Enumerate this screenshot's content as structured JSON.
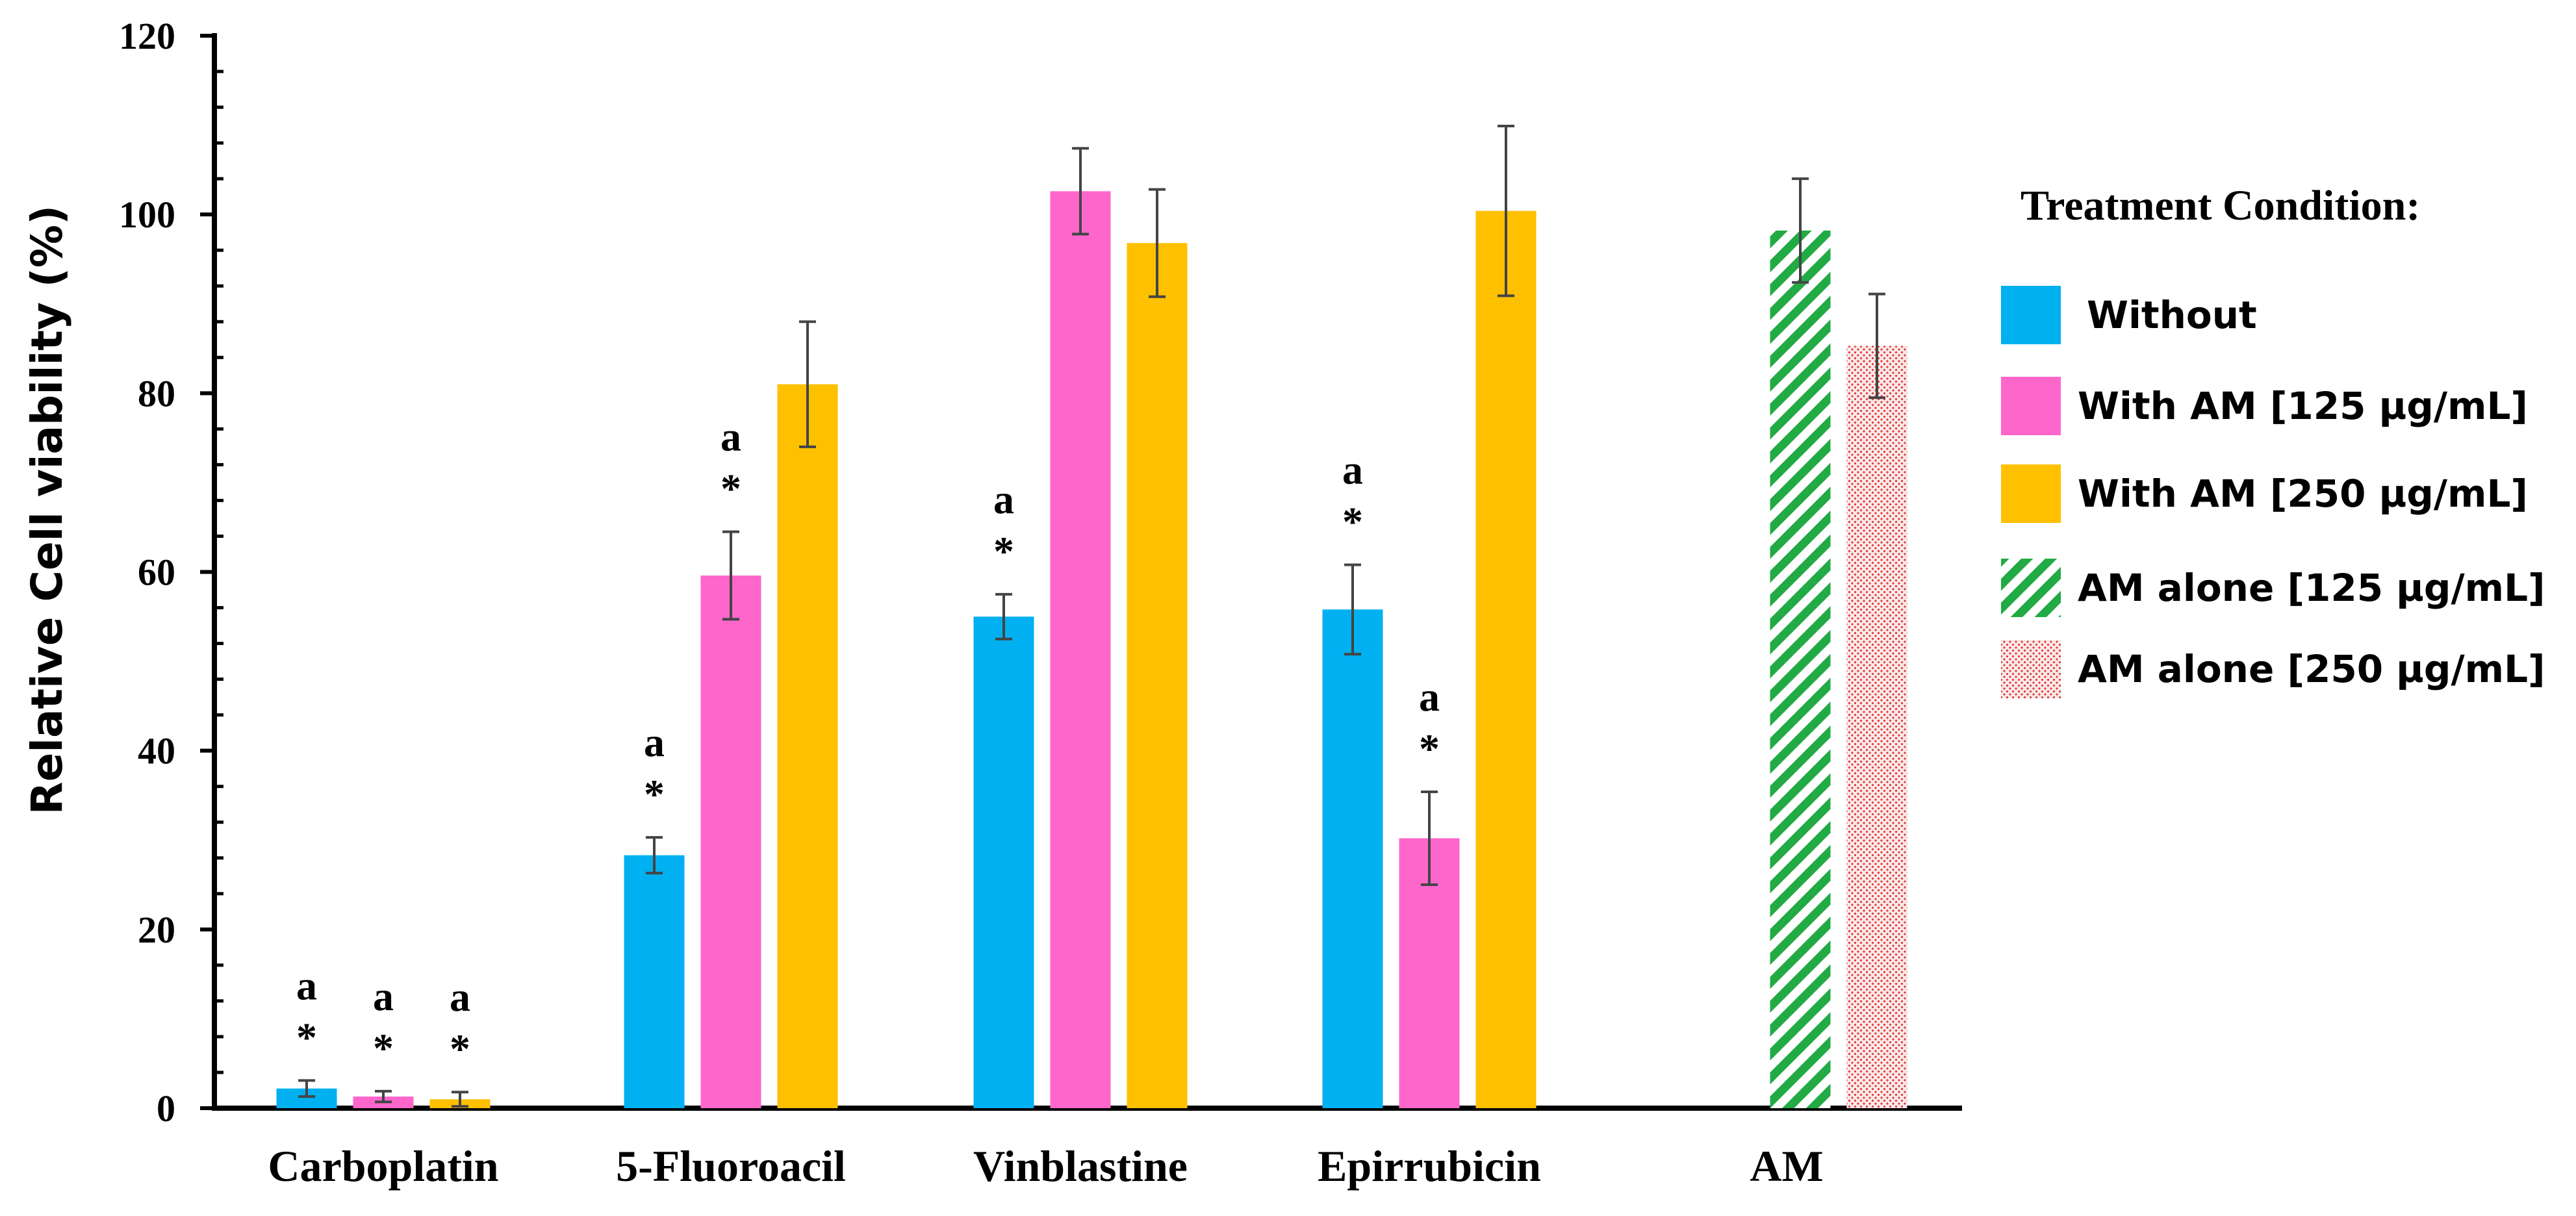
{
  "chart_data": {
    "type": "bar",
    "title": "",
    "xlabel": "",
    "ylabel": "Relative Cell viability (%)",
    "ylim": [
      0,
      120
    ],
    "yticks": [
      0,
      20,
      40,
      60,
      80,
      100,
      120
    ],
    "grid": false,
    "legend_title": "Treatment Condition:",
    "legend_position": "right",
    "categories": [
      "Carboplatin",
      "5-Fluoroacil",
      "Vinblastine",
      "Epirrubicin",
      "AM"
    ],
    "series": [
      {
        "name": "Without",
        "color": "#00b0f0",
        "pattern": "solid",
        "values": [
          2.2,
          28.3,
          55.0,
          55.8,
          null
        ],
        "errors": [
          0.9,
          2.0,
          2.5,
          5.0,
          null
        ],
        "labels": [
          [
            "a",
            "*"
          ],
          [
            "a",
            "*"
          ],
          [
            "a",
            "*"
          ],
          [
            "a",
            "*"
          ],
          null
        ]
      },
      {
        "name": "With AM [125 µg/mL]",
        "color": "#ff66cc",
        "pattern": "solid",
        "values": [
          1.3,
          59.6,
          102.6,
          30.2,
          null
        ],
        "errors": [
          0.6,
          4.9,
          4.8,
          5.2,
          null
        ],
        "labels": [
          [
            "a",
            "*"
          ],
          [
            "a",
            "*"
          ],
          null,
          [
            "a",
            "*"
          ],
          null
        ]
      },
      {
        "name": "With AM [250 µg/mL]",
        "color": "#ffc000",
        "pattern": "solid",
        "values": [
          1.0,
          81.0,
          96.8,
          100.4,
          null
        ],
        "errors": [
          0.8,
          7.0,
          6.0,
          9.5,
          null
        ],
        "labels": [
          [
            "a",
            "*"
          ],
          null,
          null,
          null,
          null
        ]
      },
      {
        "name": "AM alone [125 µg/mL]",
        "color": "#22aa44",
        "pattern": "diagonal-stripes",
        "values": [
          null,
          null,
          null,
          null,
          98.2
        ],
        "errors": [
          null,
          null,
          null,
          null,
          5.8
        ],
        "labels": [
          null,
          null,
          null,
          null,
          null
        ]
      },
      {
        "name": "AM alone [250 µg/mL]",
        "color": "#e03c3c",
        "pattern": "dotted",
        "values": [
          null,
          null,
          null,
          null,
          85.3
        ],
        "errors": [
          null,
          null,
          null,
          null,
          5.8
        ],
        "labels": [
          null,
          null,
          null,
          null,
          null
        ]
      }
    ]
  }
}
